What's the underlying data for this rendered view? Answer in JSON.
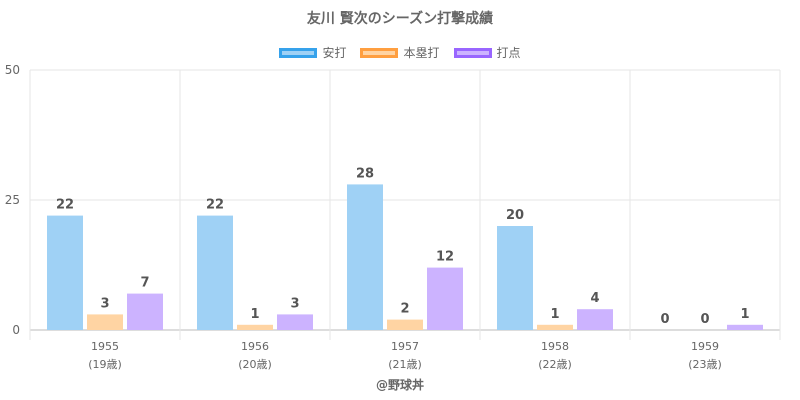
{
  "chart_data": {
    "type": "bar",
    "title": "友川 賢次のシーズン打撃成績",
    "categories": [
      "1955",
      "1956",
      "1957",
      "1958",
      "1959"
    ],
    "sub_labels": [
      "(19歳)",
      "(20歳)",
      "(21歳)",
      "(22歳)",
      "(23歳)"
    ],
    "ylim": [
      0,
      50
    ],
    "yticks": [
      0,
      25,
      50
    ],
    "grid": true,
    "legend_position": "top",
    "series": [
      {
        "name": "安打",
        "values": [
          22,
          22,
          28,
          20,
          0
        ],
        "fill": "#9fd1f5",
        "border": "#36a2eb"
      },
      {
        "name": "本塁打",
        "values": [
          3,
          1,
          2,
          1,
          0
        ],
        "fill": "#ffd4a3",
        "border": "#ff9f40"
      },
      {
        "name": "打点",
        "values": [
          7,
          3,
          12,
          4,
          1
        ],
        "fill": "#ccb3ff",
        "border": "#9966ff"
      }
    ]
  },
  "footer": "@野球丼"
}
